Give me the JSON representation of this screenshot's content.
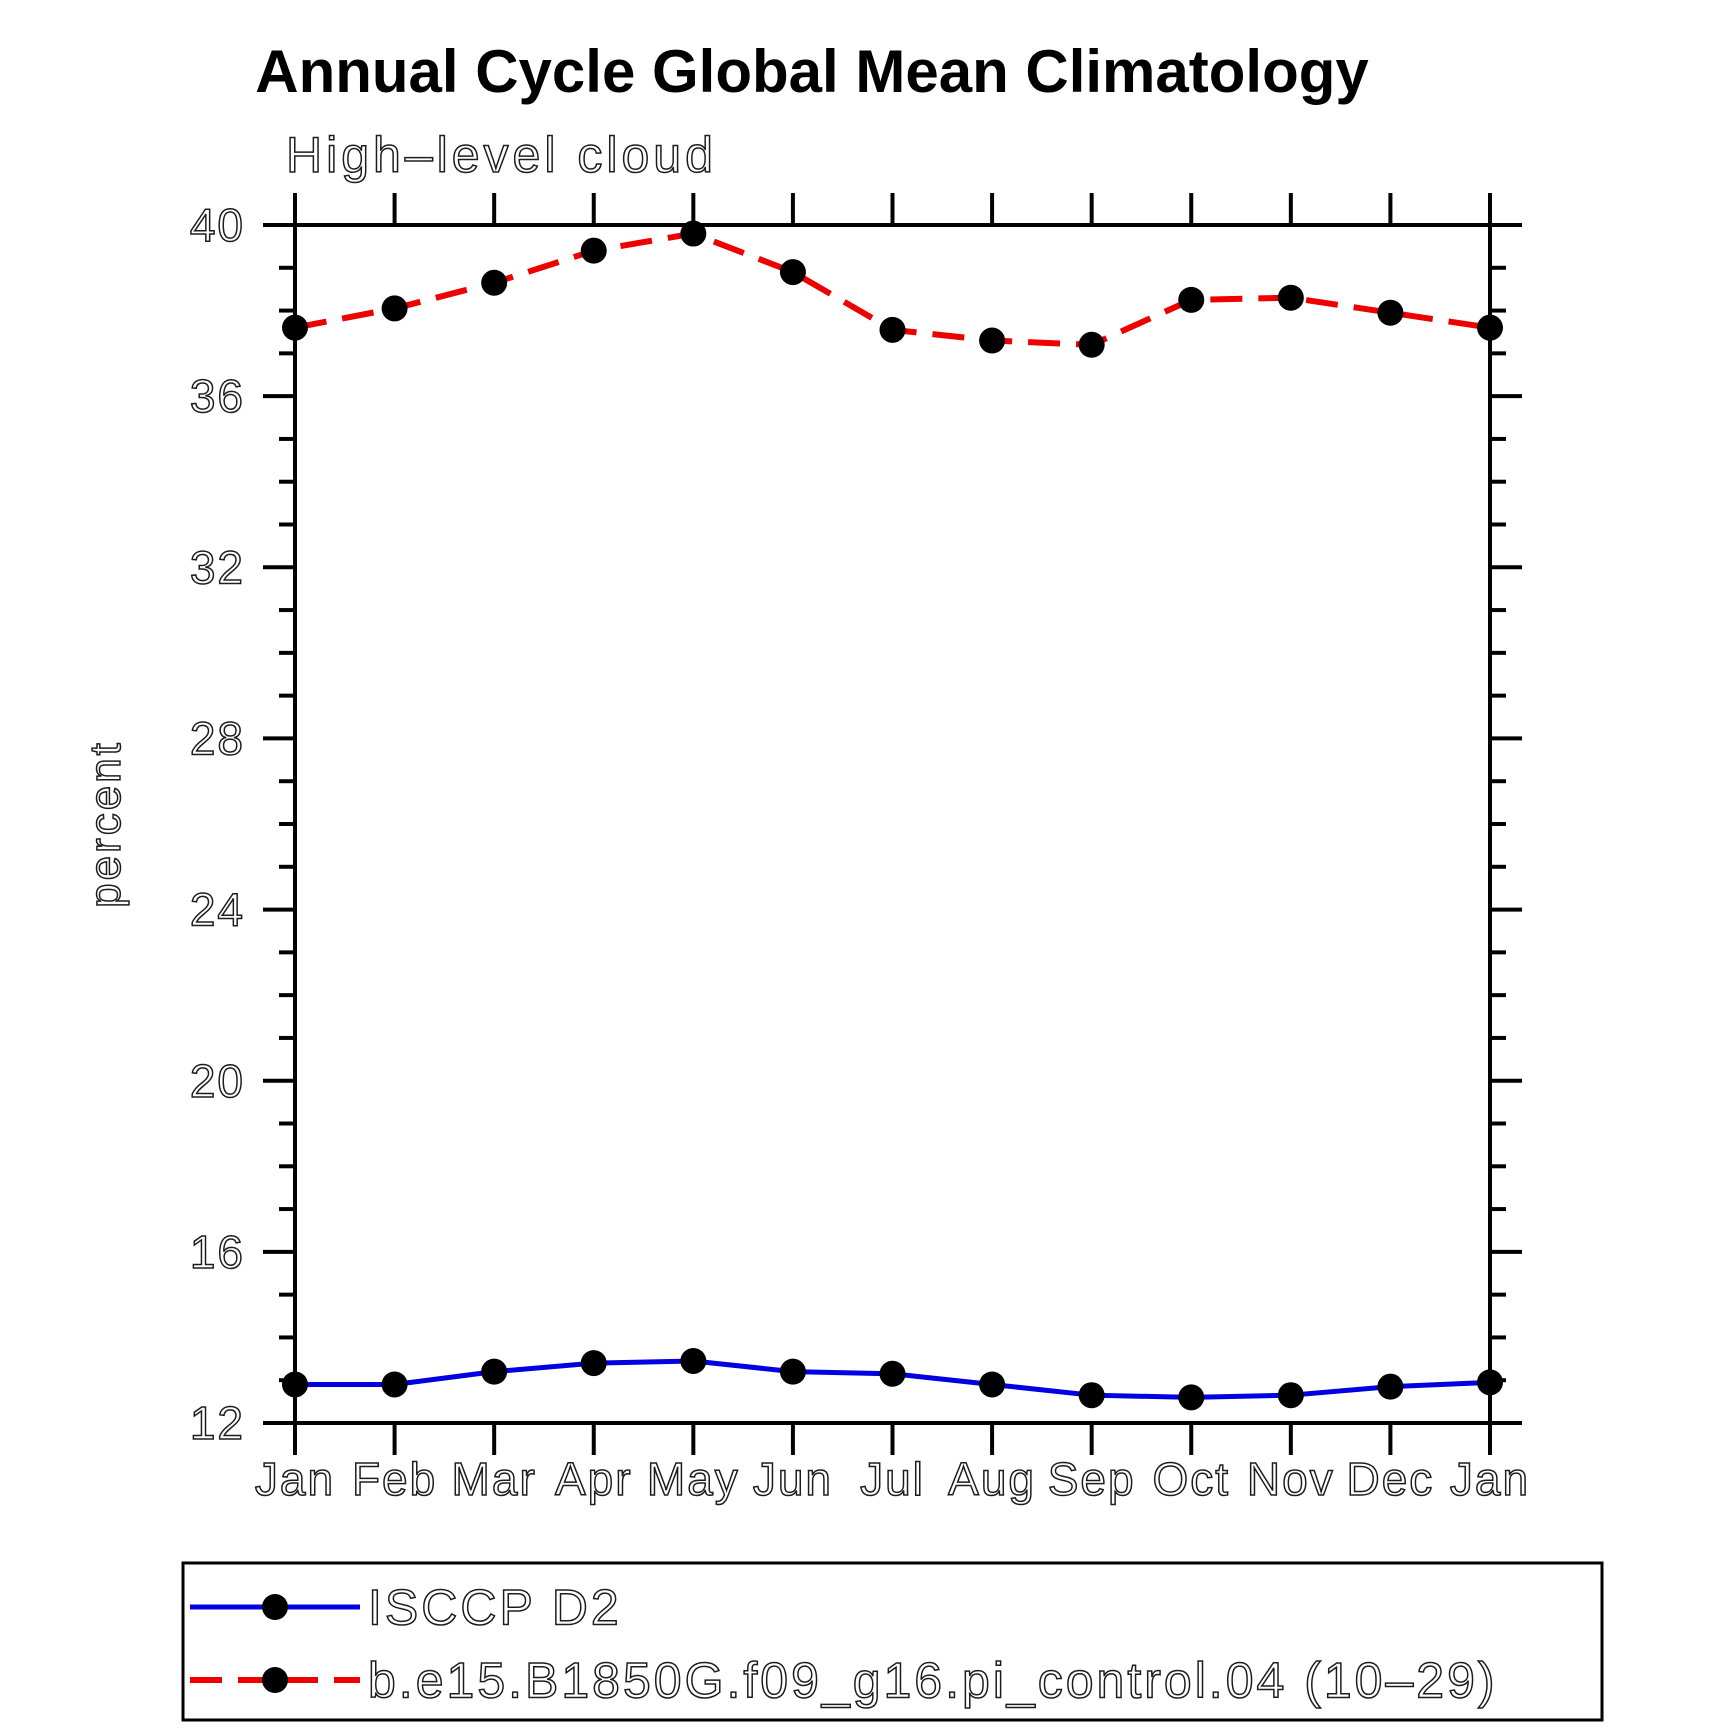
{
  "title": "Annual Cycle Global Mean Climatology",
  "subtitle": "High–level cloud",
  "y_axis_label": "percent",
  "chart_data": {
    "type": "line",
    "categories": [
      "Jan",
      "Feb",
      "Mar",
      "Apr",
      "May",
      "Jun",
      "Jul",
      "Aug",
      "Sep",
      "Oct",
      "Nov",
      "Dec",
      "Jan"
    ],
    "series": [
      {
        "name": "ISCCP D2",
        "line_style": "solid",
        "color": "#0000e0",
        "marker": "filled-circle",
        "marker_color": "#000000",
        "values": [
          12.9,
          12.9,
          13.2,
          13.4,
          13.45,
          13.2,
          13.15,
          12.9,
          12.65,
          12.6,
          12.65,
          12.85,
          12.95
        ]
      },
      {
        "name": "b.e15.B1850G.f09_g16.pi_control.04 (10–29)",
        "line_style": "dashed",
        "color": "#ee0000",
        "marker": "filled-circle",
        "marker_color": "#000000",
        "values": [
          37.6,
          38.05,
          38.65,
          39.4,
          39.8,
          38.9,
          37.55,
          37.3,
          37.2,
          38.25,
          38.3,
          37.95,
          37.6
        ]
      }
    ],
    "ylim": [
      12,
      40
    ],
    "ytick_major_step": 4,
    "ytick_minor_step": 1,
    "ytick_labels": [
      "12",
      "16",
      "20",
      "24",
      "28",
      "32",
      "36",
      "40"
    ],
    "grid": false,
    "legend_position": "bottom"
  },
  "colors": {
    "axis": "#000000",
    "obs_line": "#0000e0",
    "model_line": "#ee0000",
    "marker": "#000000",
    "background": "#ffffff"
  }
}
